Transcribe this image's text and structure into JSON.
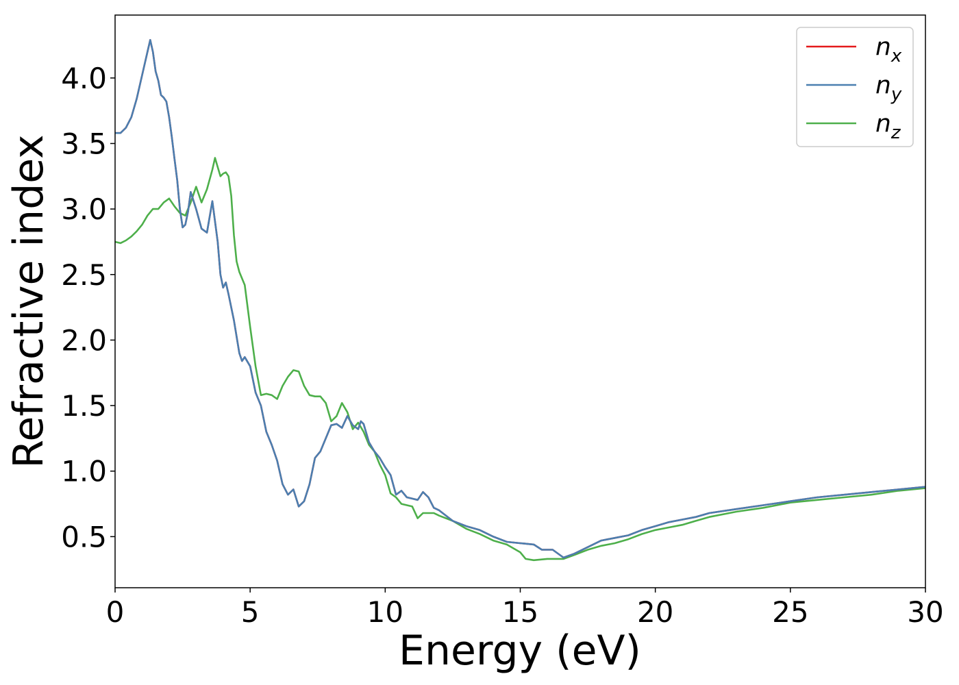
{
  "chart_data": {
    "type": "line",
    "title": "",
    "xlabel": "Energy (eV)",
    "ylabel": "Refractive index",
    "xlim": [
      0,
      30
    ],
    "ylim": [
      0.11,
      4.48
    ],
    "xticks": [
      0,
      5,
      10,
      15,
      20,
      25,
      30
    ],
    "xtick_labels": [
      "0",
      "5",
      "10",
      "15",
      "20",
      "25",
      "30"
    ],
    "yticks": [
      0.5,
      1.0,
      1.5,
      2.0,
      2.5,
      3.0,
      3.5,
      4.0
    ],
    "ytick_labels": [
      "0.5",
      "1.0",
      "1.5",
      "2.0",
      "2.5",
      "3.0",
      "3.5",
      "4.0"
    ],
    "grid": false,
    "legend_position": "top-right",
    "series": [
      {
        "name": "n_x",
        "color": "#e41a1c",
        "x": [
          0,
          0.2,
          0.4,
          0.6,
          0.8,
          1.0,
          1.2,
          1.3,
          1.4,
          1.5,
          1.6,
          1.7,
          1.8,
          1.9,
          2.0,
          2.1,
          2.2,
          2.3,
          2.4,
          2.5,
          2.6,
          2.7,
          2.8,
          3.0,
          3.2,
          3.4,
          3.6,
          3.8,
          3.9,
          4.0,
          4.1,
          4.2,
          4.4,
          4.6,
          4.7,
          4.8,
          5.0,
          5.2,
          5.4,
          5.6,
          5.8,
          6.0,
          6.2,
          6.4,
          6.6,
          6.8,
          7.0,
          7.2,
          7.4,
          7.6,
          7.8,
          8.0,
          8.2,
          8.4,
          8.6,
          8.8,
          9.0,
          9.1,
          9.2,
          9.4,
          9.6,
          9.8,
          10.0,
          10.2,
          10.4,
          10.6,
          10.8,
          11.0,
          11.2,
          11.4,
          11.6,
          11.8,
          12.0,
          12.5,
          13.0,
          13.5,
          14.0,
          14.5,
          15.0,
          15.5,
          15.8,
          16.2,
          16.6,
          17.0,
          17.5,
          18.0,
          18.5,
          19.0,
          19.5,
          20.0,
          20.5,
          21.0,
          21.5,
          22.0,
          23.0,
          24.0,
          25.0,
          26.0,
          27.0,
          28.0,
          29.0,
          30.0
        ],
        "values": [
          3.58,
          3.58,
          3.62,
          3.7,
          3.84,
          4.02,
          4.2,
          4.29,
          4.2,
          4.05,
          3.98,
          3.87,
          3.85,
          3.82,
          3.7,
          3.55,
          3.38,
          3.22,
          3.0,
          2.86,
          2.88,
          2.98,
          3.13,
          3.0,
          2.85,
          2.82,
          3.06,
          2.75,
          2.5,
          2.4,
          2.44,
          2.35,
          2.15,
          1.9,
          1.84,
          1.87,
          1.8,
          1.6,
          1.5,
          1.3,
          1.2,
          1.08,
          0.9,
          0.82,
          0.86,
          0.73,
          0.77,
          0.9,
          1.1,
          1.15,
          1.25,
          1.35,
          1.36,
          1.33,
          1.42,
          1.35,
          1.32,
          1.38,
          1.36,
          1.22,
          1.15,
          1.1,
          1.03,
          0.97,
          0.82,
          0.85,
          0.8,
          0.79,
          0.78,
          0.84,
          0.8,
          0.72,
          0.7,
          0.62,
          0.58,
          0.55,
          0.5,
          0.46,
          0.45,
          0.44,
          0.4,
          0.4,
          0.34,
          0.37,
          0.42,
          0.47,
          0.49,
          0.51,
          0.55,
          0.58,
          0.61,
          0.63,
          0.65,
          0.68,
          0.71,
          0.74,
          0.77,
          0.8,
          0.82,
          0.84,
          0.86,
          0.88
        ]
      },
      {
        "name": "n_y",
        "color": "#4a7fb0",
        "x": [
          0,
          0.2,
          0.4,
          0.6,
          0.8,
          1.0,
          1.2,
          1.3,
          1.4,
          1.5,
          1.6,
          1.7,
          1.8,
          1.9,
          2.0,
          2.1,
          2.2,
          2.3,
          2.4,
          2.5,
          2.6,
          2.7,
          2.8,
          3.0,
          3.2,
          3.4,
          3.6,
          3.8,
          3.9,
          4.0,
          4.1,
          4.2,
          4.4,
          4.6,
          4.7,
          4.8,
          5.0,
          5.2,
          5.4,
          5.6,
          5.8,
          6.0,
          6.2,
          6.4,
          6.6,
          6.8,
          7.0,
          7.2,
          7.4,
          7.6,
          7.8,
          8.0,
          8.2,
          8.4,
          8.6,
          8.8,
          9.0,
          9.1,
          9.2,
          9.4,
          9.6,
          9.8,
          10.0,
          10.2,
          10.4,
          10.6,
          10.8,
          11.0,
          11.2,
          11.4,
          11.6,
          11.8,
          12.0,
          12.5,
          13.0,
          13.5,
          14.0,
          14.5,
          15.0,
          15.5,
          15.8,
          16.2,
          16.6,
          17.0,
          17.5,
          18.0,
          18.5,
          19.0,
          19.5,
          20.0,
          20.5,
          21.0,
          21.5,
          22.0,
          23.0,
          24.0,
          25.0,
          26.0,
          27.0,
          28.0,
          29.0,
          30.0
        ],
        "values": [
          3.58,
          3.58,
          3.62,
          3.7,
          3.84,
          4.02,
          4.2,
          4.29,
          4.2,
          4.05,
          3.98,
          3.87,
          3.85,
          3.82,
          3.7,
          3.55,
          3.38,
          3.22,
          3.0,
          2.86,
          2.88,
          2.98,
          3.13,
          3.0,
          2.85,
          2.82,
          3.06,
          2.75,
          2.5,
          2.4,
          2.44,
          2.35,
          2.15,
          1.9,
          1.84,
          1.87,
          1.8,
          1.6,
          1.5,
          1.3,
          1.2,
          1.08,
          0.9,
          0.82,
          0.86,
          0.73,
          0.77,
          0.9,
          1.1,
          1.15,
          1.25,
          1.35,
          1.36,
          1.33,
          1.42,
          1.35,
          1.32,
          1.38,
          1.36,
          1.22,
          1.15,
          1.1,
          1.03,
          0.97,
          0.82,
          0.85,
          0.8,
          0.79,
          0.78,
          0.84,
          0.8,
          0.72,
          0.7,
          0.62,
          0.58,
          0.55,
          0.5,
          0.46,
          0.45,
          0.44,
          0.4,
          0.4,
          0.34,
          0.37,
          0.42,
          0.47,
          0.49,
          0.51,
          0.55,
          0.58,
          0.61,
          0.63,
          0.65,
          0.68,
          0.71,
          0.74,
          0.77,
          0.8,
          0.82,
          0.84,
          0.86,
          0.88
        ]
      },
      {
        "name": "n_z",
        "color": "#4daf4a",
        "x": [
          0,
          0.2,
          0.4,
          0.6,
          0.8,
          1.0,
          1.2,
          1.4,
          1.6,
          1.8,
          2.0,
          2.2,
          2.4,
          2.6,
          2.8,
          3.0,
          3.2,
          3.4,
          3.6,
          3.7,
          3.8,
          3.9,
          4.0,
          4.1,
          4.2,
          4.3,
          4.4,
          4.5,
          4.6,
          4.8,
          5.0,
          5.2,
          5.4,
          5.6,
          5.8,
          6.0,
          6.2,
          6.4,
          6.6,
          6.8,
          7.0,
          7.2,
          7.4,
          7.6,
          7.8,
          8.0,
          8.2,
          8.4,
          8.6,
          8.8,
          9.0,
          9.2,
          9.4,
          9.6,
          9.8,
          10.0,
          10.2,
          10.4,
          10.6,
          10.8,
          11.0,
          11.2,
          11.4,
          11.6,
          11.8,
          12.0,
          12.5,
          13.0,
          13.5,
          14.0,
          14.5,
          15.0,
          15.2,
          15.5,
          16.0,
          16.6,
          17.0,
          17.5,
          18.0,
          18.5,
          19.0,
          19.5,
          20.0,
          20.5,
          21.0,
          21.5,
          22.0,
          23.0,
          24.0,
          25.0,
          26.0,
          27.0,
          28.0,
          29.0,
          30.0
        ],
        "values": [
          2.75,
          2.74,
          2.76,
          2.79,
          2.83,
          2.88,
          2.95,
          3.0,
          3.0,
          3.05,
          3.08,
          3.02,
          2.97,
          2.95,
          3.05,
          3.17,
          3.05,
          3.15,
          3.3,
          3.39,
          3.32,
          3.25,
          3.27,
          3.28,
          3.25,
          3.1,
          2.8,
          2.6,
          2.52,
          2.42,
          2.1,
          1.8,
          1.58,
          1.59,
          1.58,
          1.55,
          1.65,
          1.72,
          1.77,
          1.76,
          1.65,
          1.58,
          1.57,
          1.57,
          1.52,
          1.38,
          1.42,
          1.52,
          1.45,
          1.32,
          1.37,
          1.3,
          1.2,
          1.15,
          1.05,
          0.97,
          0.83,
          0.8,
          0.75,
          0.74,
          0.73,
          0.64,
          0.68,
          0.68,
          0.68,
          0.66,
          0.62,
          0.56,
          0.52,
          0.47,
          0.44,
          0.38,
          0.33,
          0.32,
          0.33,
          0.33,
          0.36,
          0.4,
          0.43,
          0.45,
          0.48,
          0.52,
          0.55,
          0.57,
          0.59,
          0.62,
          0.65,
          0.69,
          0.72,
          0.76,
          0.78,
          0.8,
          0.82,
          0.85,
          0.87
        ]
      }
    ],
    "legend": [
      {
        "base": "n",
        "sub": "x"
      },
      {
        "base": "n",
        "sub": "y"
      },
      {
        "base": "n",
        "sub": "z"
      }
    ]
  }
}
